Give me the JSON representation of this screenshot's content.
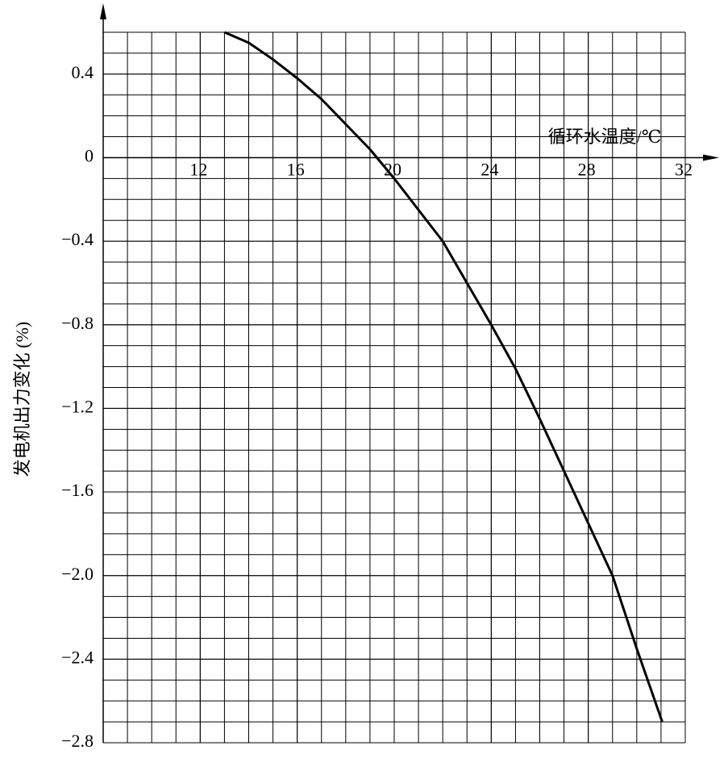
{
  "chart_data": {
    "type": "line",
    "x_label": "循环水温度/℃",
    "y_label": "发电机出力变化 (%)",
    "xlim": [
      8,
      32
    ],
    "ylim": [
      -2.8,
      0.6
    ],
    "xticks": [
      12,
      16,
      20,
      24,
      28,
      32
    ],
    "yticks": [
      0.4,
      0,
      {
        "value": -0.4,
        "label": "−0.4"
      },
      {
        "value": -0.8,
        "label": "−0.8"
      },
      {
        "value": -1.2,
        "label": "−1.2"
      },
      {
        "value": -1.6,
        "label": "−1.6"
      },
      {
        "value": -2.0,
        "label": "−2.0"
      },
      {
        "value": -2.4,
        "label": "−2.4"
      },
      {
        "value": -2.8,
        "label": "−2.8"
      }
    ],
    "grid": true,
    "x": [
      13,
      14,
      15,
      16,
      17,
      18,
      19,
      20,
      21,
      22,
      23,
      24,
      25,
      26,
      27,
      28,
      29,
      30,
      31.05
    ],
    "series": [
      {
        "color": "#000000",
        "values": [
          0.6,
          0.55,
          0.47,
          0.38,
          0.28,
          0.16,
          0.04,
          -0.1,
          -0.25,
          -0.4,
          -0.6,
          -0.8,
          -1.01,
          -1.25,
          -1.5,
          -1.75,
          -2.0,
          -2.35,
          -2.7
        ]
      }
    ]
  }
}
